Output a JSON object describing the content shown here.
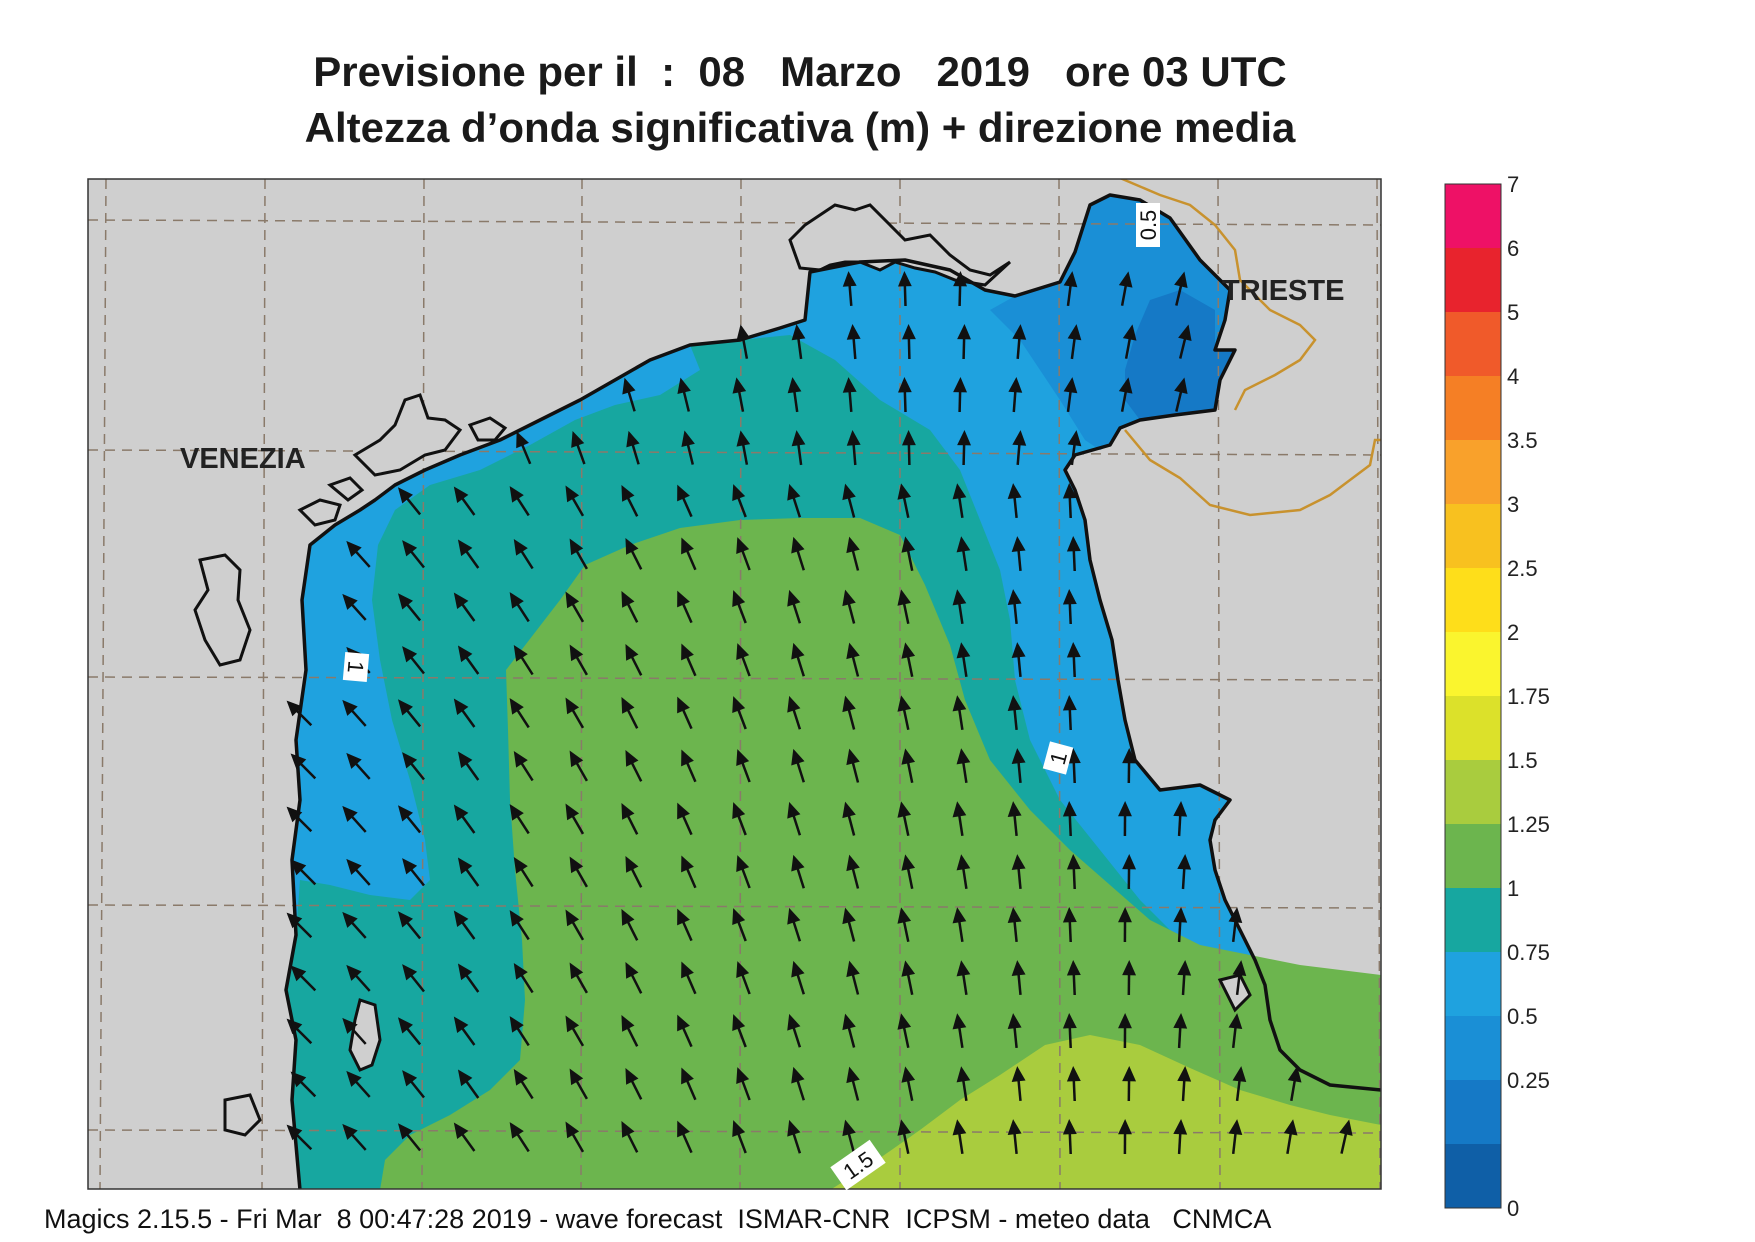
{
  "title_line1": "Previsione per il  :  08   Marzo   2019   ore 03 UTC",
  "title_line2": "Altezza d’onda significativa (m) + direzione media",
  "cities": [
    {
      "name": "VENEZIA"
    },
    {
      "name": "TRIESTE"
    }
  ],
  "contour_labels": [
    "1",
    "1",
    "0.5",
    "1.5"
  ],
  "legend": {
    "labels": [
      "7",
      "6",
      "5",
      "4",
      "3.5",
      "3",
      "2.5",
      "2",
      "1.75",
      "1.5",
      "1.25",
      "1",
      "0.75",
      "0.5",
      "0.25",
      "0"
    ],
    "colors": [
      "#ee1166",
      "#e8232d",
      "#f05a2a",
      "#f57f25",
      "#f9a12b",
      "#f8c11f",
      "#fede1a",
      "#faf52e",
      "#dce12a",
      "#a9cc3e",
      "#6cb54e",
      "#17a7a0",
      "#1fa2df",
      "#1a8fd6",
      "#1579c6",
      "#0f5fa7"
    ]
  },
  "colors": {
    "land": "#cfcfcf",
    "coast": "#111111",
    "border": "#c8922e",
    "grid": "#8a7a6a"
  },
  "footer": "Magics 2.15.5 - Fri Mar  8 00:47:28 2019 - wave forecast  ISMAR-CNR  ICPSM - meteo data   CNMCA"
}
